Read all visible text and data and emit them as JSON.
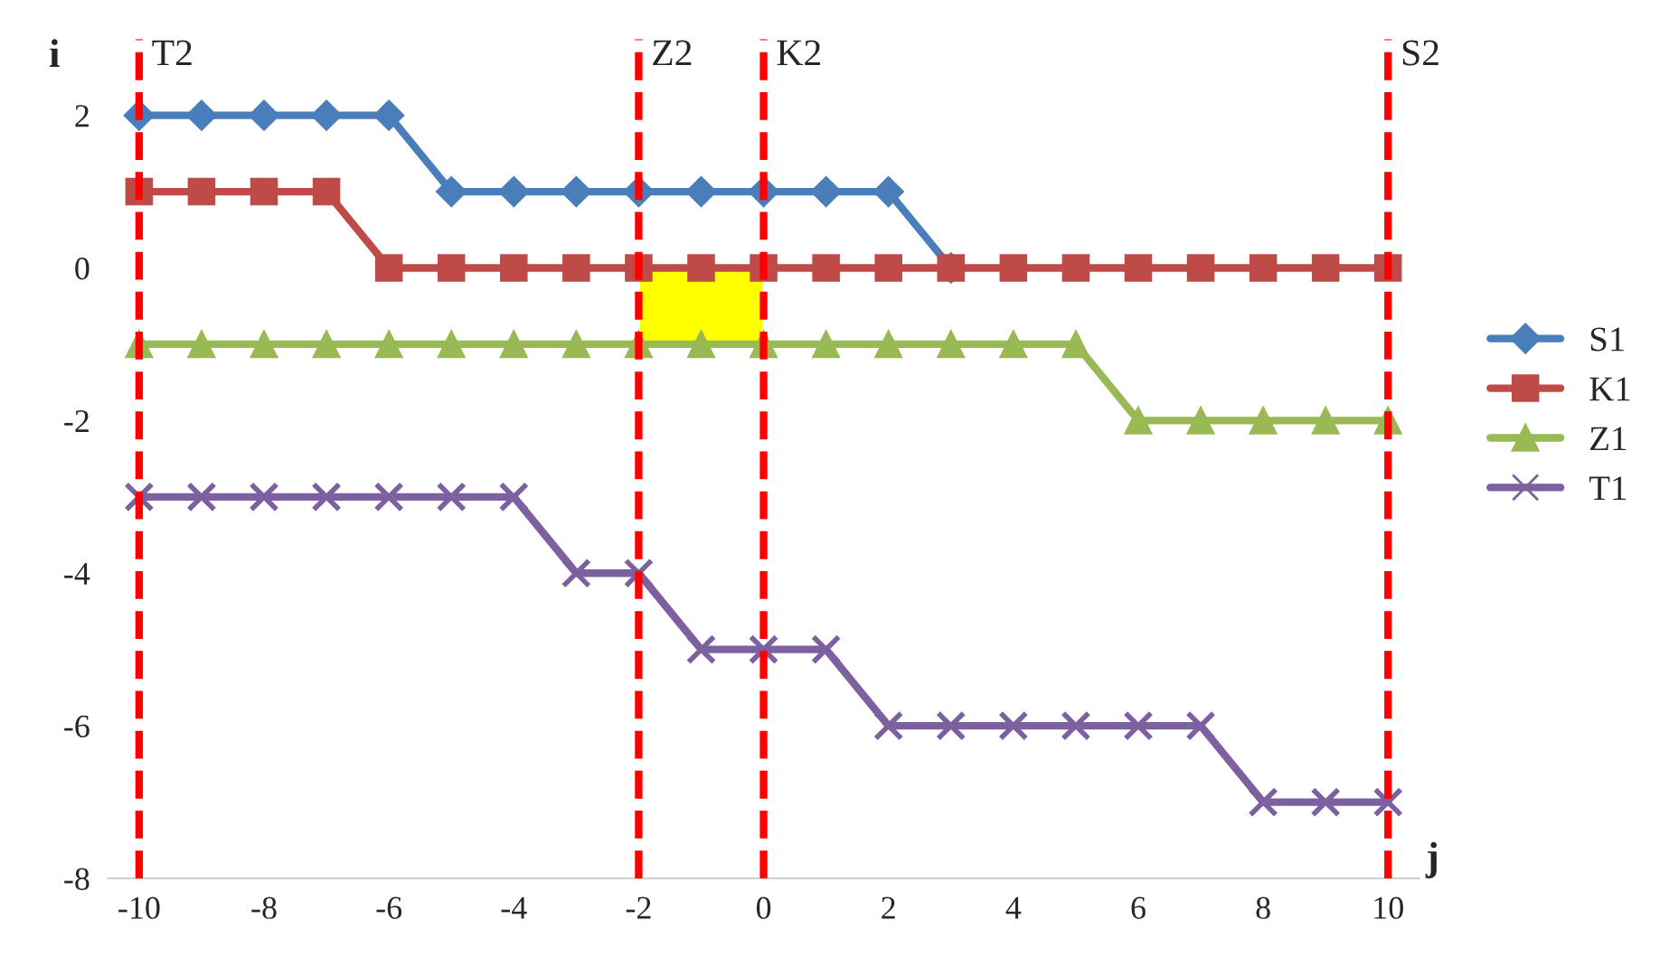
{
  "chart_data": {
    "type": "line",
    "xlabel": "j",
    "ylabel": "i",
    "x": [
      -10,
      -9,
      -8,
      -7,
      -6,
      -5,
      -4,
      -3,
      -2,
      -1,
      0,
      1,
      2,
      3,
      4,
      5,
      6,
      7,
      8,
      9,
      10
    ],
    "series": [
      {
        "name": "S1",
        "color": "#4a7ebb",
        "marker": "diamond",
        "values": [
          2,
          2,
          2,
          2,
          2,
          1,
          1,
          1,
          1,
          1,
          1,
          1,
          1,
          0,
          null,
          null,
          null,
          null,
          null,
          null,
          null
        ]
      },
      {
        "name": "K1",
        "color": "#be4b48",
        "marker": "square",
        "values": [
          1,
          1,
          1,
          1,
          0,
          0,
          0,
          0,
          0,
          0,
          0,
          0,
          0,
          0,
          0,
          0,
          0,
          0,
          0,
          0,
          0
        ]
      },
      {
        "name": "Z1",
        "color": "#98b954",
        "marker": "triangle",
        "values": [
          -1,
          -1,
          -1,
          -1,
          -1,
          -1,
          -1,
          -1,
          -1,
          -1,
          -1,
          -1,
          -1,
          -1,
          -1,
          -1,
          -2,
          -2,
          -2,
          -2,
          -2
        ]
      },
      {
        "name": "T1",
        "color": "#7d60a0",
        "marker": "cross",
        "values": [
          -3,
          -3,
          -3,
          -3,
          -3,
          -3,
          -3,
          -4,
          -4,
          -5,
          -5,
          -5,
          -6,
          -6,
          -6,
          -6,
          -6,
          -6,
          -7,
          -7,
          -7
        ]
      },
      {
        "type": "bar",
        "color": "#ffff00",
        "x": [
          -1
        ],
        "base": [
          0
        ],
        "values": [
          -1
        ]
      }
    ],
    "ref_lines": [
      {
        "axis": "x",
        "value": -10,
        "label": "T2",
        "color": "#ff0000",
        "line_style": "dashed"
      },
      {
        "axis": "x",
        "value": -2,
        "label": "Z2",
        "color": "#ff0000",
        "line_style": "dashed"
      },
      {
        "axis": "x",
        "value": 0,
        "label": "K2",
        "color": "#ff0000",
        "line_style": "dashed"
      },
      {
        "axis": "x",
        "value": 10,
        "label": "S2",
        "color": "#ff0000",
        "line_style": "dashed"
      }
    ],
    "xlim": [
      -10.5,
      10.5
    ],
    "ylim": [
      -8,
      3
    ],
    "xticks": [
      -10,
      -8,
      -6,
      -4,
      -2,
      0,
      2,
      4,
      6,
      8,
      10
    ],
    "yticks": [
      -8,
      -6,
      -4,
      -2,
      0,
      2
    ],
    "grid": false,
    "legend": "right",
    "line_style": "solid"
  }
}
